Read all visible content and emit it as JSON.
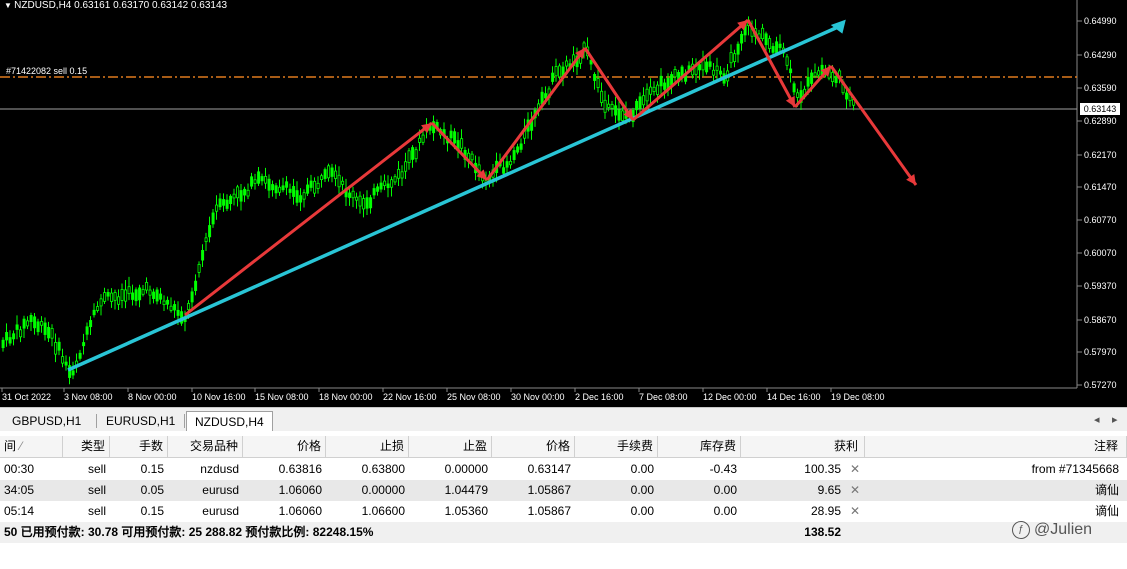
{
  "chart": {
    "info_bar": "NZDUSD,H4  0.63161 0.63170 0.63142 0.63143",
    "order_label": "#71422082 sell 0.15",
    "current_price": "0.63143",
    "y_axis": [
      "0.64990",
      "0.64290",
      "0.63590",
      "0.62890",
      "0.62170",
      "0.61470",
      "0.60770",
      "0.60070",
      "0.59370",
      "0.58670",
      "0.57970",
      "0.57270"
    ],
    "x_axis": [
      "31 Oct 2022",
      "3 Nov 08:00",
      "8 Nov 00:00",
      "10 Nov 16:00",
      "15 Nov 08:00",
      "18 Nov 00:00",
      "22 Nov 16:00",
      "25 Nov 08:00",
      "30 Nov 00:00",
      "2 Dec 16:00",
      "7 Dec 08:00",
      "12 Dec 00:00",
      "14 Dec 16:00",
      "19 Dec 08:00"
    ],
    "colors": {
      "candle": "#00ff00",
      "background": "#000000",
      "trendline": "#29c5d6",
      "arrow": "#e8393a",
      "order_line": "#e07b1e"
    }
  },
  "tabs": [
    "GBPUSD,H1",
    "EURUSD,H1",
    "NZDUSD,H4"
  ],
  "table": {
    "headers": [
      "间",
      "类型",
      "手数",
      "交易品种",
      "价格",
      "止损",
      "止盈",
      "价格",
      "手续费",
      "库存费",
      "获利",
      "注释"
    ],
    "rows": [
      {
        "time": "00:30",
        "type": "sell",
        "lots": "0.15",
        "symbol": "nzdusd",
        "price": "0.63816",
        "sl": "0.63800",
        "tp": "0.00000",
        "cur_price": "0.63147",
        "commission": "0.00",
        "swap": "-0.43",
        "profit": "100.35",
        "comment": "from #71345668"
      },
      {
        "time": "34:05",
        "type": "sell",
        "lots": "0.05",
        "symbol": "eurusd",
        "price": "1.06060",
        "sl": "0.00000",
        "tp": "1.04479",
        "cur_price": "1.05867",
        "commission": "0.00",
        "swap": "0.00",
        "profit": "9.65",
        "comment": "谪仙"
      },
      {
        "time": "05:14",
        "type": "sell",
        "lots": "0.15",
        "symbol": "eurusd",
        "price": "1.06060",
        "sl": "1.06600",
        "tp": "1.05360",
        "cur_price": "1.05867",
        "commission": "0.00",
        "swap": "0.00",
        "profit": "28.95",
        "comment": "谪仙"
      }
    ],
    "summary_left": "50  已用预付款: 30.78   可用预付款: 25 288.82   预付款比例: 82248.15%",
    "summary_profit": "138.52"
  },
  "watermark": "@Julien"
}
